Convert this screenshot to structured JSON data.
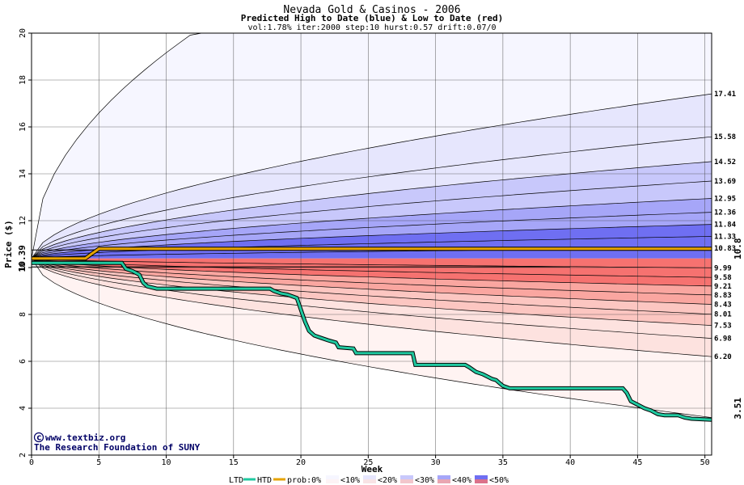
{
  "chart_data": {
    "type": "area",
    "title": "Nevada Gold & Casinos - 2006",
    "subtitle": "Predicted High to Date (blue) &  Low to Date (red)",
    "params": "vol:1.78% iter:2000 step:10 hurst:0.57 drift:0.07/0",
    "xlabel": "Week",
    "ylabel": "Price ($)",
    "xlim": [
      0,
      50.5
    ],
    "ylim": [
      2,
      20
    ],
    "x_ticks": [
      0,
      5,
      10,
      15,
      20,
      25,
      30,
      35,
      40,
      45,
      50
    ],
    "y_ticks": [
      2,
      4,
      6,
      8,
      10,
      12,
      14,
      16,
      18,
      20
    ],
    "grid": true,
    "start_value": 10.39,
    "start_label": "10.39",
    "current_value": 10.8,
    "current_label": "10.8",
    "low_end_value": 3.51,
    "low_end_label": "3.51",
    "high_percentiles": [
      {
        "label": "17.41",
        "end": 17.41
      },
      {
        "label": "15.58",
        "end": 15.58
      },
      {
        "label": "14.52",
        "end": 14.52
      },
      {
        "label": "13.69",
        "end": 13.69
      },
      {
        "label": "12.95",
        "end": 12.95
      },
      {
        "label": "12.36",
        "end": 12.36
      },
      {
        "label": "11.84",
        "end": 11.84
      },
      {
        "label": "11.33",
        "end": 11.33
      },
      {
        "label": "10.83",
        "end": 10.83
      }
    ],
    "low_percentiles": [
      {
        "label": "9.99",
        "end": 9.99
      },
      {
        "label": "9.58",
        "end": 9.58
      },
      {
        "label": "9.21",
        "end": 9.21
      },
      {
        "label": "8.83",
        "end": 8.83
      },
      {
        "label": "8.43",
        "end": 8.43
      },
      {
        "label": "8.01",
        "end": 8.01
      },
      {
        "label": "7.53",
        "end": 7.53
      },
      {
        "label": "6.98",
        "end": 6.98
      },
      {
        "label": "6.20",
        "end": 6.2
      }
    ],
    "high_outer_reaches_20_at_week": 12,
    "low_outer_end": 3.6,
    "htd_series": {
      "name": "HTD",
      "x": [
        0,
        4,
        4.5,
        5,
        50.5
      ],
      "y": [
        10.39,
        10.39,
        10.6,
        10.8,
        10.8
      ]
    },
    "ltd_series": {
      "name": "LTD",
      "x": [
        0,
        6.7,
        7,
        7.5,
        8,
        8.3,
        8.6,
        9.3,
        17.7,
        18,
        18.5,
        19,
        19.7,
        20,
        20.3,
        20.6,
        21,
        21.5,
        22,
        22.6,
        22.8,
        23.9,
        24.1,
        28.3,
        28.5,
        32.2,
        32.5,
        33,
        33.5,
        34.2,
        34.5,
        34.8,
        35,
        35.5,
        43.9,
        44.2,
        44.5,
        45,
        45.5,
        46,
        46.5,
        47,
        48,
        48.5,
        49,
        50.5
      ],
      "y": [
        10.2,
        10.2,
        9.95,
        9.85,
        9.7,
        9.35,
        9.2,
        9.1,
        9.1,
        9.0,
        8.9,
        8.85,
        8.7,
        8.2,
        7.7,
        7.3,
        7.1,
        7.0,
        6.9,
        6.8,
        6.6,
        6.55,
        6.35,
        6.35,
        5.85,
        5.85,
        5.75,
        5.55,
        5.45,
        5.25,
        5.2,
        5.05,
        4.95,
        4.85,
        4.85,
        4.65,
        4.3,
        4.15,
        4.0,
        3.9,
        3.75,
        3.7,
        3.7,
        3.6,
        3.55,
        3.51
      ]
    },
    "flat_markers": [
      {
        "x_end": 40,
        "y": 10.03
      },
      {
        "x_end": 35,
        "y": 10.75
      }
    ],
    "colors": {
      "background": "#ffffff",
      "htd": "#e6a300",
      "ltd": "#1fc9a0",
      "start_label": "#226644",
      "current_label": "#a07000",
      "low_end_label": "#1c9e76",
      "credit": "#000066",
      "grid": "#444444"
    },
    "legend": {
      "ltd": "LTD",
      "htd": "HTD",
      "prob_label": "prob:0%",
      "bins": [
        "<10%",
        "<20%",
        "<30%",
        "<40%",
        "<50%"
      ],
      "blue_shades": [
        "#ffffff",
        "#f6f6ff",
        "#e6e6fd",
        "#c8c8fb",
        "#a6a6f8",
        "#6f6ff2"
      ],
      "red_shades": [
        "#ffffff",
        "#fff3f2",
        "#fde2df",
        "#fcc6c1",
        "#faa6a0",
        "#f67270"
      ],
      "placement": "bottom"
    }
  },
  "credits": {
    "site": "www.textbiz.org",
    "org": "The Research Foundation of SUNY",
    "copyright_symbol": "©"
  }
}
